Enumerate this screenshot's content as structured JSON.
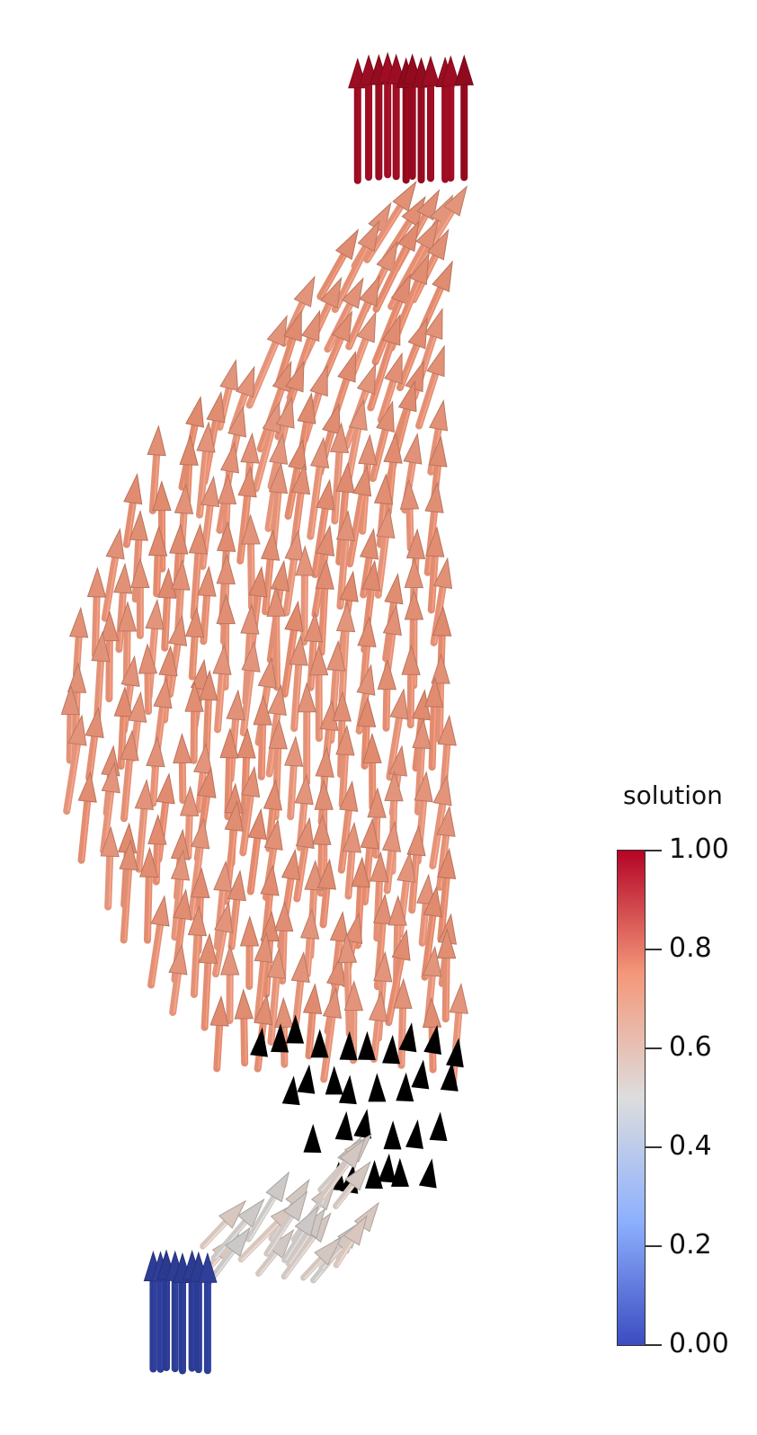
{
  "legend": {
    "title": "solution",
    "ticks": [
      "0.00",
      "0.2",
      "0.4",
      "0.6",
      "0.8",
      "1.00"
    ],
    "range": [
      0,
      1
    ],
    "colormap": [
      "#3b4cc0",
      "#8db0fe",
      "#dddddd",
      "#f4987a",
      "#b40426"
    ]
  },
  "field": {
    "glyph": "arrow",
    "colors": {
      "source": "#2b3a8f",
      "sink": "#8f0a1e",
      "bulk": "#e08a6e",
      "low": "#c9c9c9"
    }
  }
}
